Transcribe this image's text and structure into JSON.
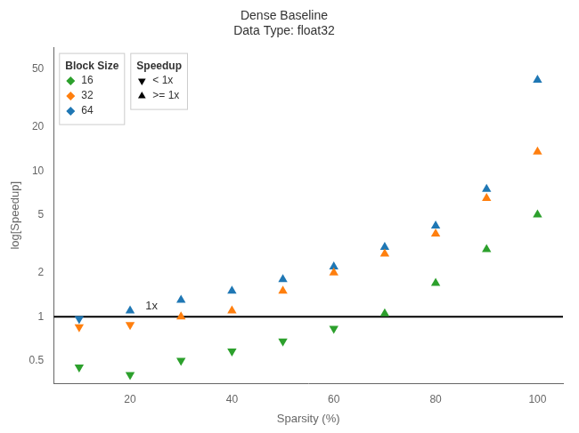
{
  "chart_data": {
    "type": "scatter",
    "title": "Dense Baseline\nData Type: float32",
    "xlabel": "Sparsity (%)",
    "ylabel": "log[Speedup]",
    "x": [
      10,
      20,
      30,
      40,
      50,
      60,
      70,
      80,
      90,
      100
    ],
    "series": [
      {
        "name": "16",
        "color": "#2ca02c",
        "values": [
          0.45,
          0.4,
          0.5,
          0.58,
          0.68,
          0.83,
          1.05,
          1.7,
          2.9,
          5.0
        ]
      },
      {
        "name": "32",
        "color": "#ff7f0e",
        "values": [
          0.85,
          0.88,
          1.0,
          1.1,
          1.5,
          2.0,
          2.7,
          3.7,
          6.5,
          13.5
        ]
      },
      {
        "name": "64",
        "color": "#1f77b4",
        "values": [
          0.97,
          1.1,
          1.3,
          1.5,
          1.8,
          2.2,
          3.0,
          4.2,
          7.5,
          42.0
        ]
      }
    ],
    "legend_title": "Block Size",
    "marker_legend": {
      "title": "Speedup",
      "entries": [
        {
          "name": "< 1x",
          "marker": "triangle_down"
        },
        {
          "name": ">= 1x",
          "marker": "triangle_up"
        }
      ]
    },
    "reference_line": {
      "y": 1.0,
      "color": "black"
    },
    "annotations": [
      {
        "text": "1x",
        "x": 23,
        "y": 1.07
      }
    ],
    "log": "y",
    "xlim": [
      5,
      105
    ],
    "xticks": [
      20,
      40,
      60,
      80,
      100
    ],
    "ylim": [
      0.35,
      70.0
    ],
    "yticks": [
      0.5,
      1,
      2,
      5,
      10,
      20,
      50
    ],
    "grid": false,
    "legend": "upper left"
  }
}
